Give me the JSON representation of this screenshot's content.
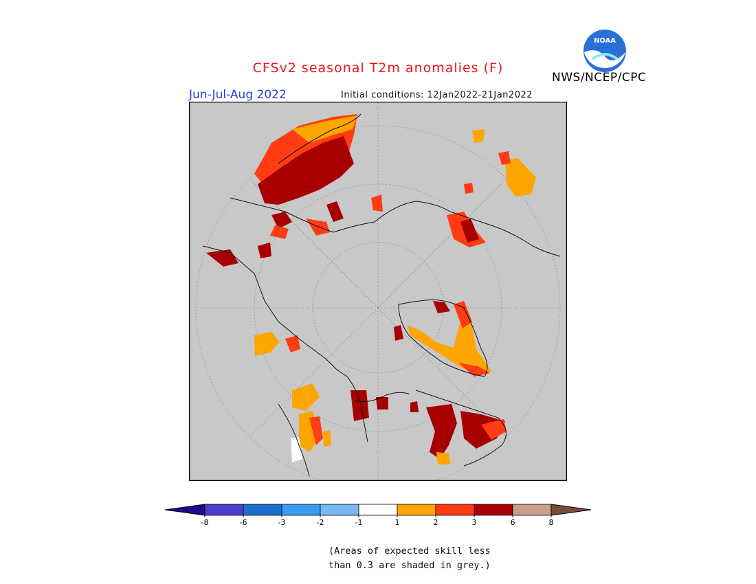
{
  "title": "CFSv2 seasonal T2m anomalies (F)",
  "season": "Jun-Jul-Aug 2022",
  "initial_conditions": "Initial conditions: 12Jan2022-21Jan2022",
  "organization": "NWS/NCEP/CPC",
  "logo_text": "NOAA",
  "logo_icon": "noaa-logo",
  "note_lines": [
    "(Areas of expected skill less",
    "than 0.3 are shaded in grey.)"
  ],
  "colorbar": {
    "tick_labels": [
      "-8",
      "-6",
      "-3",
      "-2",
      "-1",
      "1",
      "2",
      "3",
      "6",
      "8"
    ],
    "colors": [
      "#1e0a8c",
      "#4c3ec8",
      "#1e6ed2",
      "#3a9cef",
      "#7ab8f5",
      "#ffffff",
      "#ffa500",
      "#ff3c14",
      "#a80000",
      "#c8a08c",
      "#7a4a3a"
    ]
  },
  "map": {
    "projection": "north-polar-stereographic",
    "background_color": "#c8c8c8",
    "grey_meaning": "skill below 0.3"
  }
}
